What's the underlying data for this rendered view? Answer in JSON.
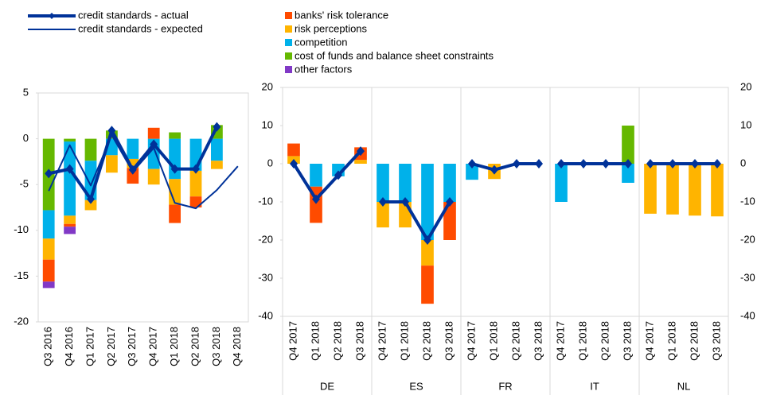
{
  "chart_data": [
    {
      "type": "bar",
      "categories": [
        "Q3 2016",
        "Q4 2016",
        "Q1 2017",
        "Q2 2017",
        "Q3 2017",
        "Q4 2017",
        "Q1 2018",
        "Q2 2018",
        "Q3 2018",
        "Q4 2018"
      ],
      "series": [
        {
          "name": "banks' risk tolerance",
          "color": "#ff4b00",
          "values": [
            -2.4,
            -0.3,
            0,
            0,
            -1.7,
            1.2,
            -2.0,
            -1.2,
            0,
            null
          ]
        },
        {
          "name": "risk perceptions",
          "color": "#ffb400",
          "values": [
            -2.3,
            -0.9,
            -1.1,
            -1.9,
            -1.0,
            -1.7,
            -2.8,
            -2.8,
            -0.9,
            null
          ]
        },
        {
          "name": "competition",
          "color": "#00b1ea",
          "values": [
            -3.1,
            -8.1,
            -4.3,
            -1.8,
            -2.2,
            -3.3,
            -4.4,
            -3.5,
            -2.4,
            null
          ]
        },
        {
          "name": "cost of funds and balance sheet constraints",
          "color": "#65b800",
          "values": [
            -7.8,
            -0.3,
            -2.4,
            0.9,
            0,
            0,
            0.7,
            0,
            1.5,
            null
          ]
        },
        {
          "name": "other factors",
          "color": "#8139c6",
          "values": [
            -0.7,
            -0.8,
            0,
            0,
            0,
            0,
            0,
            0,
            0,
            null
          ]
        }
      ],
      "lines": [
        {
          "name": "credit standards - actual",
          "color": "#003299",
          "values": [
            -3.8,
            -3.3,
            -6.6,
            0.9,
            -3.4,
            -0.6,
            -3.3,
            -3.3,
            1.3,
            null
          ]
        },
        {
          "name": "credit standards - expected",
          "color": "#003299",
          "values": [
            -5.7,
            -0.7,
            -5.1,
            0.4,
            -3.6,
            -1.0,
            -7.0,
            -7.6,
            -5.6,
            -3.0
          ]
        }
      ],
      "ylim": [
        -20,
        5
      ],
      "yticks": [
        -20,
        -15,
        -10,
        -5,
        0,
        5
      ]
    },
    {
      "type": "bar",
      "groups": [
        "DE",
        "ES",
        "FR",
        "IT",
        "NL"
      ],
      "categories": [
        "Q4 2017",
        "Q1 2018",
        "Q2 2018",
        "Q3 2018",
        "Q4 2017",
        "Q1 2018",
        "Q2 2018",
        "Q3 2018",
        "Q4 2017",
        "Q1 2018",
        "Q2 2018",
        "Q3 2018",
        "Q4 2017",
        "Q1 2018",
        "Q2 2018",
        "Q3 2018",
        "Q4 2017",
        "Q1 2018",
        "Q2 2018",
        "Q3 2018"
      ],
      "series": [
        {
          "color": "#ff4b00",
          "values": [
            3.3,
            -9.5,
            0,
            3.3,
            0,
            0,
            -10,
            -10,
            0,
            0,
            0,
            0,
            0,
            0,
            0,
            0,
            0,
            0,
            0,
            0
          ]
        },
        {
          "color": "#ffb400",
          "values": [
            2,
            0,
            0,
            1,
            -6.7,
            -6.7,
            -6.7,
            0,
            0,
            -4,
            0,
            0,
            0,
            0,
            0,
            0,
            -13.1,
            -13.3,
            -13.6,
            -13.8
          ]
        },
        {
          "color": "#00b1ea",
          "values": [
            0,
            -6,
            -3.3,
            0,
            -10,
            -10,
            -20,
            -10,
            -4.2,
            0,
            0,
            0,
            -10,
            0,
            0,
            -5,
            0,
            0,
            0,
            0
          ]
        },
        {
          "color": "#65b800",
          "values": [
            0,
            0,
            0,
            0,
            0,
            0,
            0,
            0,
            0,
            0,
            0,
            0,
            0,
            0,
            0,
            10,
            0,
            0,
            0,
            0
          ]
        },
        {
          "color": "#8139c6",
          "values": [
            0,
            0,
            0,
            0,
            0,
            0,
            0,
            0,
            0,
            0,
            0,
            0,
            0,
            0,
            0,
            0,
            0,
            0,
            0,
            0
          ]
        }
      ],
      "lines": [
        {
          "color": "#003299",
          "values": [
            0,
            -9.3,
            -3,
            3.3,
            -10,
            -10,
            -20,
            -10,
            0,
            -1.6,
            0,
            0,
            0,
            0,
            0,
            0,
            0,
            0,
            0,
            0
          ]
        }
      ],
      "ylim": [
        -40,
        20
      ],
      "yticks": [
        -40,
        -30,
        -20,
        -10,
        0,
        10,
        20
      ]
    }
  ]
}
